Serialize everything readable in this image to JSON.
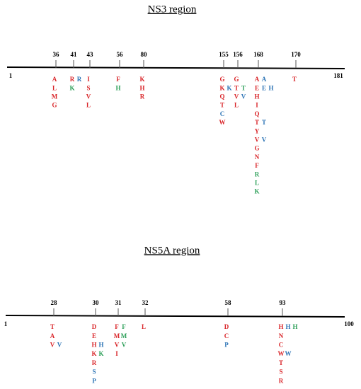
{
  "regions": [
    {
      "title": "NS3 region",
      "start": 1,
      "end": 181,
      "sites": [
        {
          "position": 36,
          "columns": [
            {
              "letters": [
                "A",
                "L",
                "M",
                "G"
              ],
              "colors": [
                "red",
                "red",
                "red",
                "red"
              ]
            }
          ]
        },
        {
          "position": 41,
          "columns": [
            {
              "letters": [
                "R",
                "K"
              ],
              "colors": [
                "red",
                "green"
              ]
            },
            {
              "letters": [
                "R"
              ],
              "colors": [
                "blue"
              ]
            }
          ]
        },
        {
          "position": 43,
          "columns": [
            {
              "letters": [
                "I",
                "S",
                "V",
                "L"
              ],
              "colors": [
                "red",
                "red",
                "red",
                "red"
              ]
            }
          ]
        },
        {
          "position": 56,
          "columns": [
            {
              "letters": [
                "F",
                "H"
              ],
              "colors": [
                "red",
                "green"
              ]
            }
          ]
        },
        {
          "position": 80,
          "columns": [
            {
              "letters": [
                "K",
                "H",
                "R"
              ],
              "colors": [
                "red",
                "red",
                "red"
              ]
            }
          ]
        },
        {
          "position": 155,
          "columns": [
            {
              "letters": [
                "G",
                "K",
                "Q",
                "T",
                "C",
                "W"
              ],
              "colors": [
                "red",
                "red",
                "red",
                "red",
                "blue",
                "red"
              ]
            },
            {
              "letters": [
                null,
                "K"
              ],
              "colors": [
                null,
                "blue"
              ]
            }
          ]
        },
        {
          "position": 156,
          "columns": [
            {
              "letters": [
                "G",
                "T",
                "V",
                "L"
              ],
              "colors": [
                "red",
                "red",
                "red",
                "red"
              ]
            },
            {
              "letters": [
                null,
                "T",
                "V"
              ],
              "colors": [
                null,
                "green",
                "blue"
              ]
            }
          ]
        },
        {
          "position": 168,
          "columns": [
            {
              "letters": [
                "A",
                "E",
                "H",
                "I",
                "Q",
                "T",
                "Y",
                "V",
                "G",
                "N",
                "F",
                "R",
                "L",
                "K"
              ],
              "colors": [
                "red",
                "red",
                "red",
                "red",
                "red",
                "red",
                "red",
                "red",
                "red",
                "red",
                "red",
                "green",
                "green",
                "green"
              ]
            },
            {
              "letters": [
                "A",
                "E",
                null,
                null,
                null,
                "T",
                null,
                "V"
              ],
              "colors": [
                "blue",
                "blue",
                null,
                null,
                null,
                "blue",
                null,
                "blue"
              ]
            },
            {
              "letters": [
                null,
                "H"
              ],
              "colors": [
                null,
                "blue"
              ]
            }
          ]
        },
        {
          "position": 170,
          "columns": [
            {
              "letters": [
                "T"
              ],
              "colors": [
                "red"
              ]
            }
          ]
        }
      ]
    },
    {
      "title": "NS5A region",
      "start": 1,
      "end": 100,
      "sites": [
        {
          "position": 28,
          "columns": [
            {
              "letters": [
                "T",
                "A",
                "V"
              ],
              "colors": [
                "red",
                "red",
                "red"
              ]
            },
            {
              "letters": [
                null,
                null,
                "V"
              ],
              "colors": [
                null,
                null,
                "blue"
              ]
            }
          ]
        },
        {
          "position": 30,
          "columns": [
            {
              "letters": [
                "D",
                "E",
                "H",
                "K",
                "R",
                "S",
                "P"
              ],
              "colors": [
                "red",
                "red",
                "red",
                "red",
                "red",
                "blue",
                "blue"
              ]
            },
            {
              "letters": [
                null,
                null,
                "H",
                "K"
              ],
              "colors": [
                null,
                null,
                "blue",
                "green"
              ]
            }
          ]
        },
        {
          "position": 31,
          "columns": [
            {
              "letters": [
                "F",
                "M",
                "V",
                "I"
              ],
              "colors": [
                "red",
                "red",
                "red",
                "red"
              ]
            },
            {
              "letters": [
                "F",
                "M",
                "V"
              ],
              "colors": [
                "green",
                "green",
                "green"
              ]
            }
          ]
        },
        {
          "position": 32,
          "columns": [
            {
              "letters": [
                "L"
              ],
              "colors": [
                "red"
              ]
            }
          ]
        },
        {
          "position": 58,
          "columns": [
            {
              "letters": [
                "D",
                "C",
                "P"
              ],
              "colors": [
                "red",
                "red",
                "blue"
              ]
            }
          ]
        },
        {
          "position": 93,
          "columns": [
            {
              "letters": [
                "H",
                "N",
                "C",
                "W",
                "T",
                "S",
                "R"
              ],
              "colors": [
                "red",
                "red",
                "red",
                "red",
                "red",
                "red",
                "red"
              ]
            },
            {
              "letters": [
                "H",
                null,
                null,
                "W"
              ],
              "colors": [
                "blue",
                null,
                null,
                "blue"
              ]
            },
            {
              "letters": [
                "H"
              ],
              "colors": [
                "green"
              ]
            }
          ]
        }
      ]
    }
  ]
}
